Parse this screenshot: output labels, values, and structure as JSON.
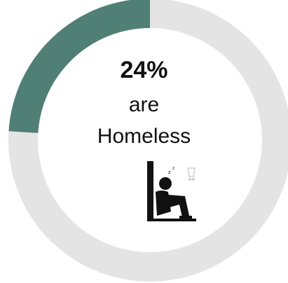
{
  "chart_data": {
    "type": "pie",
    "slices": [
      {
        "label": "Homeless",
        "value": 24,
        "color": "#4f7f75"
      },
      {
        "label": "",
        "value": 76,
        "color": "#e4e4e4"
      }
    ],
    "center_value": "24%",
    "center_line1": "are",
    "center_line2": "Homeless",
    "icon": "homeless-person-icon"
  }
}
